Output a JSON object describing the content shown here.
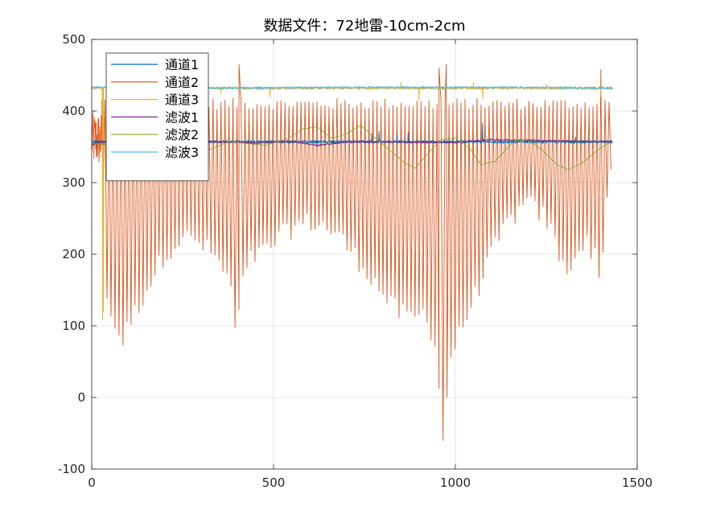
{
  "chart_data": {
    "type": "line",
    "title": "数据文件：72地雷-10cm-2cm",
    "xlabel": "",
    "ylabel": "",
    "xlim": [
      0,
      1500
    ],
    "ylim": [
      -100,
      500
    ],
    "xticks": [
      0,
      500,
      1000,
      1500
    ],
    "yticks": [
      -100,
      0,
      100,
      200,
      300,
      400,
      500
    ],
    "xtick_labels": [
      "0",
      "500",
      "1000",
      "1500"
    ],
    "ytick_labels": [
      "-100",
      "0",
      "100",
      "200",
      "300",
      "400",
      "500"
    ],
    "grid": true,
    "legend_position": "top-left",
    "sample_count": 1433,
    "series": [
      {
        "name": "通道1",
        "color": "#0072BD",
        "baseline": 357,
        "noise": 2,
        "spikes": [
          [
            770,
            368
          ],
          [
            790,
            372
          ],
          [
            840,
            366
          ],
          [
            870,
            370
          ],
          [
            1075,
            383
          ],
          [
            1330,
            364
          ]
        ]
      },
      {
        "name": "通道2",
        "color": "#D95319",
        "high": 410,
        "high_jitter": 8,
        "period": 11,
        "first_cycle_x": 42,
        "trough_envelope": [
          [
            0,
            300
          ],
          [
            30,
            180
          ],
          [
            60,
            100
          ],
          [
            85,
            80
          ],
          [
            110,
            110
          ],
          [
            150,
            150
          ],
          [
            200,
            200
          ],
          [
            250,
            225
          ],
          [
            300,
            215
          ],
          [
            340,
            195
          ],
          [
            360,
            180
          ],
          [
            380,
            160
          ],
          [
            398,
            80
          ],
          [
            410,
            150
          ],
          [
            440,
            195
          ],
          [
            480,
            205
          ],
          [
            520,
            225
          ],
          [
            560,
            240
          ],
          [
            600,
            245
          ],
          [
            640,
            240
          ],
          [
            680,
            225
          ],
          [
            720,
            200
          ],
          [
            760,
            175
          ],
          [
            800,
            145
          ],
          [
            840,
            120
          ],
          [
            880,
            110
          ],
          [
            920,
            120
          ],
          [
            950,
            60
          ],
          [
            965,
            -70
          ],
          [
            985,
            55
          ],
          [
            1020,
            100
          ],
          [
            1060,
            150
          ],
          [
            1100,
            200
          ],
          [
            1150,
            250
          ],
          [
            1200,
            270
          ],
          [
            1240,
            255
          ],
          [
            1270,
            225
          ],
          [
            1300,
            175
          ],
          [
            1330,
            200
          ],
          [
            1360,
            215
          ],
          [
            1385,
            200
          ],
          [
            1400,
            145
          ],
          [
            1410,
            260
          ],
          [
            1433,
            330
          ]
        ],
        "highlights": [
          [
            28,
            415
          ],
          [
            32,
            300
          ],
          [
            405,
            465
          ],
          [
            955,
            460
          ],
          [
            975,
            465
          ],
          [
            1400,
            458
          ]
        ]
      },
      {
        "name": "通道3",
        "color": "#EDB120",
        "baseline": 432,
        "noise": 2,
        "dips": [
          [
            30,
            108
          ],
          [
            32,
            120
          ],
          [
            355,
            425
          ],
          [
            490,
            420
          ],
          [
            900,
            415
          ],
          [
            1075,
            417
          ],
          [
            1400,
            420
          ]
        ],
        "spikes": [
          [
            110,
            440
          ],
          [
            850,
            440
          ],
          [
            1050,
            440
          ],
          [
            1250,
            438
          ]
        ]
      },
      {
        "name": "滤波1",
        "color": "#7E2F8E",
        "baseline": 356,
        "noise": 1.2,
        "waves": [
          [
            0,
            352
          ],
          [
            20,
            357
          ],
          [
            400,
            357
          ],
          [
            450,
            355
          ],
          [
            550,
            358
          ],
          [
            620,
            352
          ],
          [
            700,
            357
          ],
          [
            1000,
            356
          ],
          [
            1100,
            360
          ],
          [
            1433,
            357
          ]
        ]
      },
      {
        "name": "滤波2",
        "color": "#77AC30",
        "curve": [
          [
            0,
            355
          ],
          [
            60,
            352
          ],
          [
            120,
            348
          ],
          [
            180,
            338
          ],
          [
            220,
            322
          ],
          [
            240,
            318
          ],
          [
            270,
            325
          ],
          [
            320,
            345
          ],
          [
            380,
            358
          ],
          [
            420,
            355
          ],
          [
            480,
            352
          ],
          [
            540,
            362
          ],
          [
            580,
            375
          ],
          [
            620,
            378
          ],
          [
            660,
            362
          ],
          [
            700,
            368
          ],
          [
            740,
            380
          ],
          [
            780,
            362
          ],
          [
            820,
            345
          ],
          [
            860,
            328
          ],
          [
            890,
            320
          ],
          [
            920,
            338
          ],
          [
            960,
            360
          ],
          [
            1000,
            362
          ],
          [
            1040,
            348
          ],
          [
            1070,
            325
          ],
          [
            1110,
            330
          ],
          [
            1160,
            358
          ],
          [
            1200,
            360
          ],
          [
            1240,
            345
          ],
          [
            1280,
            325
          ],
          [
            1310,
            318
          ],
          [
            1350,
            328
          ],
          [
            1390,
            345
          ],
          [
            1420,
            355
          ],
          [
            1433,
            355
          ]
        ]
      },
      {
        "name": "滤波3",
        "color": "#4DBEEE",
        "baseline": 432,
        "noise": 1.5,
        "waves": [
          [
            0,
            433
          ],
          [
            300,
            432
          ],
          [
            700,
            433
          ],
          [
            1100,
            433
          ],
          [
            1433,
            432
          ]
        ]
      }
    ]
  }
}
